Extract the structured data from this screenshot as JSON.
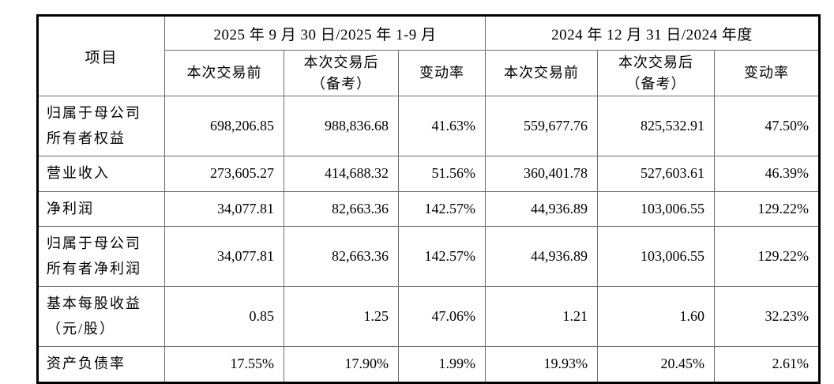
{
  "table": {
    "item_header": "项目",
    "groups": [
      {
        "label": "2025 年 9 月 30 日/2025 年 1-9 月"
      },
      {
        "label": "2024 年 12 月 31 日/2024 年度"
      }
    ],
    "sub_headers": [
      "本次交易前",
      "本次交易后\n（备考）",
      "变动率",
      "本次交易前",
      "本次交易后\n（备考）",
      "变动率"
    ],
    "rows": [
      {
        "item": "归属于母公司所有者权益",
        "values": [
          "698,206.85",
          "988,836.68",
          "41.63%",
          "559,677.76",
          "825,532.91",
          "47.50%"
        ]
      },
      {
        "item": "营业收入",
        "values": [
          "273,605.27",
          "414,688.32",
          "51.56%",
          "360,401.78",
          "527,603.61",
          "46.39%"
        ]
      },
      {
        "item": "净利润",
        "values": [
          "34,077.81",
          "82,663.36",
          "142.57%",
          "44,936.89",
          "103,006.55",
          "129.22%"
        ]
      },
      {
        "item": "归属于母公司所有者净利润",
        "values": [
          "34,077.81",
          "82,663.36",
          "142.57%",
          "44,936.89",
          "103,006.55",
          "129.22%"
        ]
      },
      {
        "item": "基本每股收益（元/股）",
        "values": [
          "0.85",
          "1.25",
          "47.06%",
          "1.21",
          "1.60",
          "32.23%"
        ]
      },
      {
        "item": "资产负债率",
        "values": [
          "17.55%",
          "17.90%",
          "1.99%",
          "19.93%",
          "20.45%",
          "2.61%"
        ]
      }
    ],
    "colors": {
      "border_outer": "#000000",
      "border_inner": "#6e6e6e",
      "text": "#000000",
      "background": "#ffffff"
    }
  }
}
